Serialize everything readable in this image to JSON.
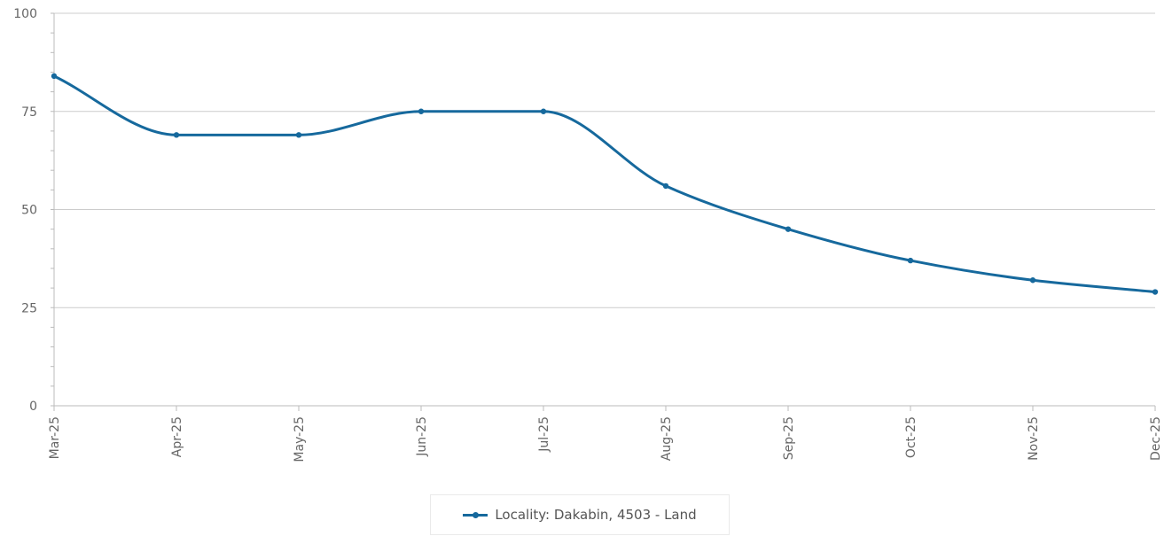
{
  "chart_data": {
    "type": "line",
    "title": "",
    "xlabel": "",
    "ylabel": "",
    "categories": [
      "Mar-25",
      "Apr-25",
      "May-25",
      "Jun-25",
      "Jul-25",
      "Aug-25",
      "Sep-25",
      "Oct-25",
      "Nov-25",
      "Dec-25"
    ],
    "series": [
      {
        "name": "Locality: Dakabin, 4503 - Land",
        "values": [
          84,
          69,
          69,
          75,
          75,
          56,
          45,
          37,
          32,
          29
        ]
      }
    ],
    "ylim": [
      0,
      100
    ],
    "yticks": [
      "0",
      "25",
      "50",
      "75",
      "100"
    ],
    "grid": true,
    "legend_position": "bottom-center",
    "smooth": true,
    "colors": {
      "series": "#16699d",
      "grid": "#cccccc",
      "axis": "#bbbbbb",
      "tick_text": "#666666"
    }
  }
}
